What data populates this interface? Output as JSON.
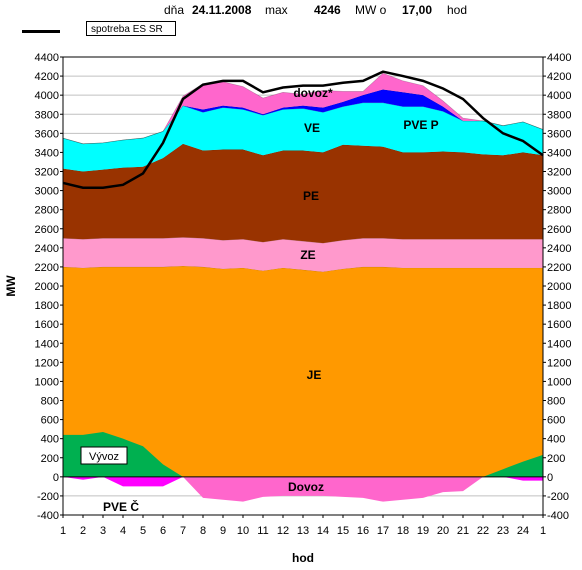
{
  "header": {
    "dna_label": "dňa",
    "date": "24.11.2008",
    "max_label": "max",
    "max_value": "4246",
    "unit_label": "MW o",
    "hour_value": "17,00",
    "hod_label": "hod"
  },
  "legend": {
    "series_name": "spotreba ES SR"
  },
  "chart_data": {
    "type": "area",
    "xlabel": "hod",
    "ylabel": "MW",
    "ylim": [
      -400,
      4400
    ],
    "y_ticks": [
      -400,
      -200,
      0,
      200,
      400,
      600,
      800,
      1000,
      1200,
      1400,
      1600,
      1800,
      2000,
      2200,
      2400,
      2600,
      2800,
      3000,
      3200,
      3400,
      3600,
      3800,
      4000,
      4200,
      4400
    ],
    "x_tick_labels": [
      "1",
      "2",
      "3",
      "4",
      "5",
      "6",
      "7",
      "8",
      "9",
      "10",
      "11",
      "12",
      "13",
      "14",
      "15",
      "16",
      "17",
      "18",
      "19",
      "20",
      "21",
      "22",
      "23",
      "24",
      "1"
    ],
    "grid": true,
    "annotations": [
      "dovoz*",
      "VE",
      "PVE P",
      "PE",
      "ZE",
      "JE",
      "Vývoz",
      "Dovoz",
      "PVE Č"
    ],
    "series": [
      {
        "name": "JE",
        "color": "#ff9900",
        "values": [
          2200,
          2190,
          2200,
          2200,
          2200,
          2200,
          2210,
          2200,
          2180,
          2190,
          2160,
          2190,
          2170,
          2150,
          2180,
          2200,
          2200,
          2190,
          2190,
          2190,
          2190,
          2190,
          2190,
          2190,
          2190
        ]
      },
      {
        "name": "ZE",
        "color": "#ff99cc",
        "values": [
          300,
          300,
          300,
          300,
          300,
          300,
          300,
          300,
          300,
          300,
          300,
          300,
          300,
          300,
          300,
          300,
          300,
          300,
          300,
          300,
          300,
          300,
          300,
          300,
          300
        ]
      },
      {
        "name": "PE",
        "color": "#993300",
        "values": [
          730,
          710,
          720,
          740,
          750,
          840,
          980,
          920,
          950,
          940,
          910,
          930,
          950,
          950,
          1000,
          970,
          960,
          910,
          910,
          920,
          910,
          890,
          880,
          910,
          880
        ]
      },
      {
        "name": "VE",
        "color": "#00ffff",
        "values": [
          320,
          290,
          280,
          290,
          300,
          280,
          400,
          400,
          440,
          420,
          420,
          430,
          440,
          420,
          400,
          450,
          460,
          480,
          480,
          420,
          330,
          350,
          310,
          320,
          270
        ]
      },
      {
        "name": "PVE P",
        "color": "#0000ff",
        "values": [
          0,
          0,
          0,
          0,
          0,
          0,
          0,
          30,
          20,
          20,
          10,
          20,
          30,
          50,
          50,
          80,
          140,
          150,
          120,
          50,
          0,
          0,
          0,
          0,
          0
        ]
      },
      {
        "name": "dovoz*",
        "color": "#ff66cc",
        "values": [
          0,
          0,
          0,
          0,
          0,
          0,
          100,
          270,
          250,
          220,
          170,
          160,
          120,
          180,
          110,
          40,
          170,
          120,
          100,
          60,
          30,
          0,
          0,
          0,
          0
        ]
      },
      {
        "name": "Vývoz",
        "color": "#00b050",
        "values": [
          440,
          440,
          470,
          400,
          320,
          130,
          0,
          0,
          0,
          0,
          0,
          0,
          0,
          0,
          0,
          0,
          0,
          0,
          0,
          0,
          0,
          0,
          80,
          160,
          230
        ]
      },
      {
        "name": "Dovoz",
        "color": "#ff66cc",
        "values": [
          0,
          0,
          0,
          0,
          0,
          0,
          0,
          -220,
          -240,
          -260,
          -210,
          -200,
          -200,
          -200,
          -210,
          -220,
          -260,
          -240,
          -220,
          -160,
          -150,
          0,
          0,
          0,
          0
        ]
      },
      {
        "name": "PVE Č",
        "color": "#ff00ff",
        "values": [
          0,
          -30,
          0,
          -100,
          -100,
          -100,
          0,
          0,
          0,
          0,
          0,
          0,
          0,
          0,
          0,
          0,
          0,
          0,
          0,
          0,
          0,
          0,
          0,
          -40,
          -40
        ]
      },
      {
        "name": "spotreba ES SR",
        "type": "line",
        "color": "#000000",
        "values": [
          3080,
          3030,
          3030,
          3060,
          3180,
          3500,
          3960,
          4110,
          4150,
          4150,
          4030,
          4080,
          4100,
          4100,
          4130,
          4150,
          4246,
          4200,
          4150,
          4070,
          3960,
          3760,
          3600,
          3520,
          3370
        ]
      }
    ]
  }
}
